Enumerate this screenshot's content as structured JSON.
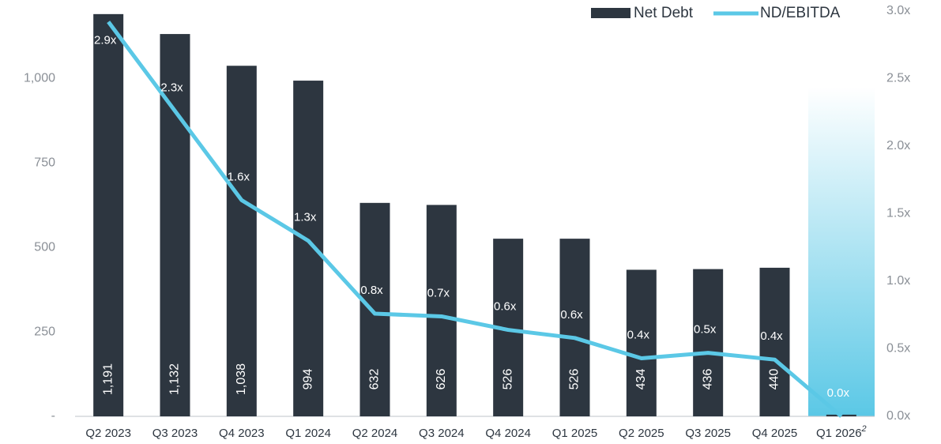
{
  "chart_data": {
    "type": "bar_line",
    "categories": [
      "Q2 2023",
      "Q3 2023",
      "Q4 2023",
      "Q1 2024",
      "Q2 2024",
      "Q3 2024",
      "Q4 2024",
      "Q1 2025",
      "Q2 2025",
      "Q3 2025",
      "Q4 2025",
      "Q1 2026"
    ],
    "last_category_footnote": "2",
    "series": [
      {
        "name": "Net Debt",
        "color": "#2d3640",
        "kind": "bar",
        "values": [
          1191,
          1132,
          1038,
          994,
          632,
          626,
          526,
          526,
          434,
          436,
          440,
          5
        ],
        "value_labels": [
          "1,191",
          "1,132",
          "1,038",
          "994",
          "632",
          "626",
          "526",
          "526",
          "434",
          "436",
          "440",
          null
        ]
      },
      {
        "name": "ND/EBITDA",
        "color": "#5bc8e6",
        "kind": "line",
        "axis": "y2",
        "values": [
          2.92,
          2.26,
          1.6,
          1.3,
          0.76,
          0.74,
          0.64,
          0.58,
          0.43,
          0.47,
          0.42,
          0.0
        ],
        "value_labels": [
          "2.9x",
          "2.3x",
          "1.6x",
          "1.3x",
          "0.8x",
          "0.7x",
          "0.6x",
          "0.6x",
          "0.4x",
          "0.5x",
          "0.4x",
          "0.0x"
        ]
      }
    ],
    "ylim": [
      0,
      1200
    ],
    "yticks": [
      {
        "value": 0,
        "label": "-"
      },
      250,
      500,
      750,
      {
        "value": 1000,
        "label": "1,000"
      }
    ],
    "y2lim": [
      0,
      3
    ],
    "y2ticks": [
      {
        "value": 0,
        "label": "0.0x"
      },
      {
        "value": 0.5,
        "label": "0.5x"
      },
      {
        "value": 1,
        "label": "1.0x"
      },
      {
        "value": 1.5,
        "label": "1.5x"
      },
      {
        "value": 2,
        "label": "2.0x"
      },
      {
        "value": 2.5,
        "label": "2.5x"
      },
      {
        "value": 3,
        "label": "3.0x"
      }
    ],
    "legend": "top-right"
  }
}
